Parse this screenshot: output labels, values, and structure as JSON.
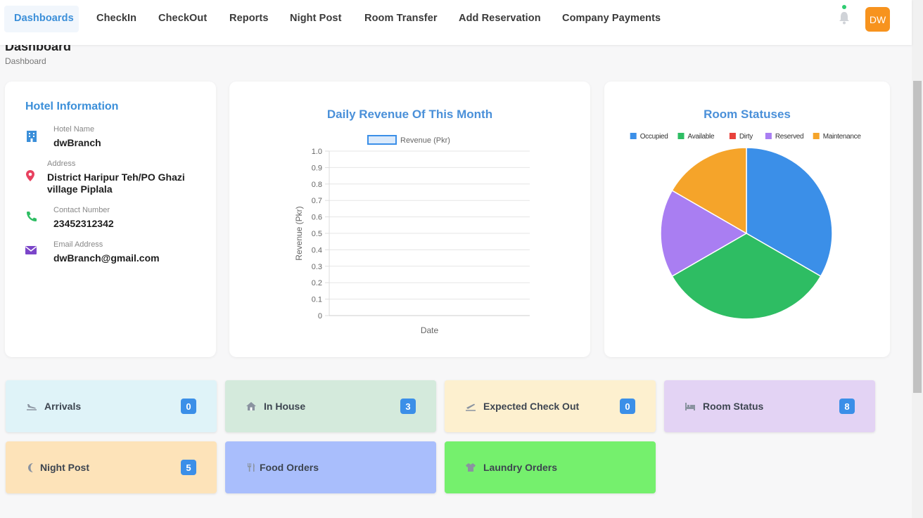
{
  "nav": {
    "items": [
      "Dashboards",
      "CheckIn",
      "CheckOut",
      "Reports",
      "Night Post",
      "Room Transfer",
      "Add Reservation",
      "Company Payments"
    ],
    "avatar_initials": "DW"
  },
  "header": {
    "title": "Dashboard",
    "breadcrumb": "Dashboard"
  },
  "hotel_info": {
    "title": "Hotel Information",
    "name_label": "Hotel Name",
    "name": "dwBranch",
    "address_label": "Address",
    "address": "District Haripur Teh/PO Ghazi village Piplala",
    "contact_label": "Contact Number",
    "contact": "23452312342",
    "email_label": "Email Address",
    "email": "dwBranch@gmail.com"
  },
  "chart_data": [
    {
      "type": "line",
      "title": "Daily Revenue Of This Month",
      "xlabel": "Date",
      "ylabel": "Revenue (Pkr)",
      "series": [
        {
          "name": "Revenue (Pkr)",
          "values": []
        }
      ],
      "ylim": [
        0,
        1.0
      ],
      "yticks": [
        "0",
        "0.1",
        "0.2",
        "0.3",
        "0.4",
        "0.5",
        "0.6",
        "0.7",
        "0.8",
        "0.9",
        "1.0"
      ],
      "grid": true,
      "legend": "top",
      "color": "#3b8fe8"
    },
    {
      "type": "pie",
      "title": "Room Statuses",
      "categories": [
        "Occupied",
        "Available",
        "Dirty",
        "Reserved",
        "Maintenance"
      ],
      "values": [
        2,
        2,
        0,
        1,
        1
      ],
      "colors": [
        "#3b8fe8",
        "#2ebd63",
        "#e8413b",
        "#a97ef2",
        "#f5a42a"
      ],
      "legend": "top"
    }
  ],
  "tiles": [
    {
      "label": "Arrivals",
      "count": "0",
      "icon": "plane-landing-icon",
      "bg": "#dff3f8"
    },
    {
      "label": "In House",
      "count": "3",
      "icon": "home-icon",
      "bg": "#d4eadc"
    },
    {
      "label": "Expected Check Out",
      "count": "0",
      "icon": "plane-departure-icon",
      "bg": "#fdf0cf"
    },
    {
      "label": "Room Status",
      "count": "8",
      "icon": "bed-icon",
      "bg": "#e3d3f4"
    },
    {
      "label": "Night Post",
      "count": "5",
      "icon": "moon-icon",
      "bg": "#fde3b9"
    },
    {
      "label": "Food Orders",
      "count": "",
      "icon": "utensils-icon",
      "bg": "#a9befc"
    },
    {
      "label": "Laundry Orders",
      "count": "",
      "icon": "shirt-icon",
      "bg": "#75f06d"
    }
  ]
}
